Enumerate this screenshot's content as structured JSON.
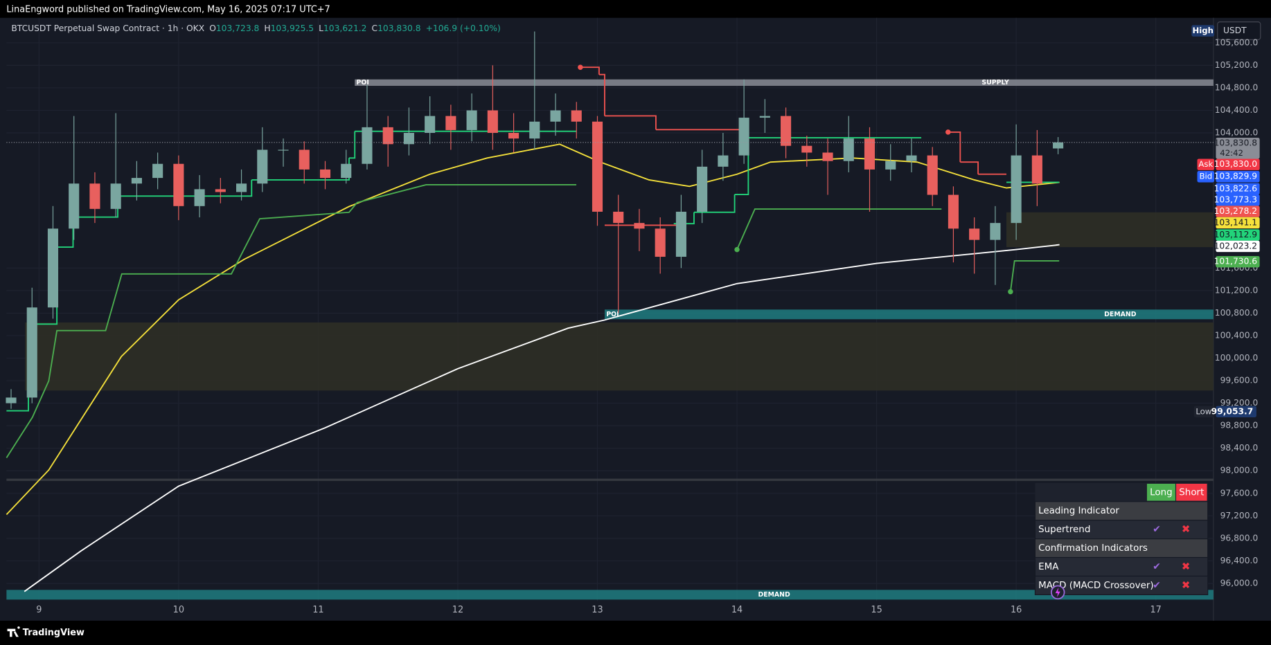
{
  "header": {
    "publisher": "LinaEngword published on TradingView.com, May 16, 2025 07:17 UTC+7"
  },
  "legend": {
    "symbol": "BTCUSDT Perpetual Swap Contract · 1h · OKX",
    "o_label": "O",
    "open": "103,723.8",
    "h_label": "H",
    "high": "103,925.5",
    "l_label": "L",
    "low": "103,621.2",
    "c_label": "C",
    "close": "103,830.8",
    "change": "+106.9 (+0.10%)"
  },
  "chart_data": {
    "type": "candlestick",
    "up_color": "#7aa6a0",
    "down_color": "#e8605e",
    "x": [
      8.8,
      8.95,
      9.1,
      9.25,
      9.4,
      9.55,
      9.7,
      9.85,
      10.0,
      10.15,
      10.3,
      10.45,
      10.6,
      10.75,
      10.9,
      11.05,
      11.2,
      11.35,
      11.5,
      11.65,
      11.8,
      11.95,
      12.1,
      12.25,
      12.4,
      12.55,
      12.7,
      12.85,
      13.0,
      13.15,
      13.3,
      13.45,
      13.6,
      13.75,
      13.9,
      14.05,
      14.2,
      14.35,
      14.5,
      14.65,
      14.8,
      14.95,
      15.1,
      15.25,
      15.4,
      15.55,
      15.7,
      15.85,
      16.0,
      16.15,
      16.3
    ],
    "open": [
      99200,
      99300,
      100900,
      102300,
      103100,
      102650,
      103100,
      103200,
      103450,
      102700,
      103000,
      102950,
      103100,
      103700,
      103700,
      103350,
      103200,
      103450,
      104100,
      103800,
      104000,
      104300,
      104050,
      104400,
      104000,
      103900,
      104200,
      104400,
      104200,
      102600,
      102400,
      102300,
      101800,
      102600,
      103400,
      103600,
      104270,
      104300,
      103770,
      103650,
      103500,
      103900,
      103350,
      103500,
      103600,
      102900,
      102300,
      102100,
      102400,
      103600,
      103723.8
    ],
    "high": [
      99450,
      101250,
      102700,
      104300,
      103300,
      104350,
      103500,
      103650,
      103600,
      103250,
      103200,
      103350,
      104100,
      103900,
      103850,
      103500,
      103700,
      104850,
      104300,
      104450,
      104650,
      104500,
      104700,
      105200,
      104350,
      105800,
      104700,
      104550,
      104300,
      102900,
      102650,
      102500,
      102900,
      103700,
      104000,
      104950,
      104600,
      104450,
      103950,
      103900,
      104300,
      104100,
      103800,
      103900,
      103750,
      103050,
      102500,
      102700,
      104150,
      104050,
      103925.5
    ],
    "low": [
      99100,
      99200,
      100700,
      102100,
      102400,
      102500,
      102800,
      103000,
      102450,
      102500,
      102750,
      102800,
      102950,
      103400,
      103100,
      103000,
      103100,
      103350,
      103400,
      103600,
      103800,
      103700,
      103850,
      103700,
      103650,
      103700,
      103950,
      103900,
      102350,
      100800,
      101900,
      101500,
      101600,
      102400,
      103150,
      103450,
      104000,
      103550,
      103400,
      102900,
      103300,
      102600,
      103150,
      103300,
      102700,
      101700,
      101500,
      101300,
      102100,
      102700,
      103621.2
    ],
    "close": [
      99300,
      100900,
      102300,
      103100,
      102650,
      103100,
      103200,
      103450,
      102700,
      103000,
      102950,
      103100,
      103700,
      103700,
      103350,
      103200,
      103450,
      104100,
      103800,
      104000,
      104300,
      104050,
      104400,
      104000,
      103900,
      104200,
      104400,
      104200,
      102600,
      102400,
      102300,
      101800,
      102600,
      103400,
      103600,
      104270,
      104300,
      103770,
      103650,
      103500,
      103900,
      103350,
      103500,
      103600,
      102900,
      102300,
      102100,
      102400,
      103600,
      103100,
      103830.8
    ],
    "xlim": [
      8.767,
      17.413
    ],
    "xticks": [
      9,
      10,
      11,
      12,
      13,
      14,
      15,
      16,
      17
    ],
    "ylim": [
      95683,
      106072
    ],
    "yticks": [
      {
        "value": 105600,
        "label": "105,600.0"
      },
      {
        "value": 105200,
        "label": "105,200.0"
      },
      {
        "value": 104800,
        "label": "104,800.0"
      },
      {
        "value": 104400,
        "label": "104,400.0"
      },
      {
        "value": 104000,
        "label": "104,000.0"
      },
      {
        "value": 101600,
        "label": "101,600.0"
      },
      {
        "value": 101200,
        "label": "101,200.0"
      },
      {
        "value": 100800,
        "label": "100,800.0"
      },
      {
        "value": 100400,
        "label": "100,400.0"
      },
      {
        "value": 100000,
        "label": "100,000.0"
      },
      {
        "value": 99600,
        "label": "99,600.0"
      },
      {
        "value": 99200,
        "label": "99,200.0"
      },
      {
        "value": 98800,
        "label": "98,800.0"
      },
      {
        "value": 98400,
        "label": "98,400.0"
      },
      {
        "value": 98000,
        "label": "98,000.0"
      },
      {
        "value": 97600,
        "label": "97,600.0"
      },
      {
        "value": 97200,
        "label": "97,200.0"
      },
      {
        "value": 96800,
        "label": "96,800.0"
      },
      {
        "value": 96400,
        "label": "96,400.0"
      },
      {
        "value": 96000,
        "label": "96,000.0"
      }
    ],
    "grid": true,
    "last_price": 103830.8,
    "zones": [
      {
        "x_start": 11.262,
        "top": 104950,
        "bottom": 104835,
        "color": "#8a8d96",
        "poi": "POI",
        "name": "SUPPLY"
      },
      {
        "x_start": 13.052,
        "top": 100863,
        "bottom": 100691,
        "color": "#1f7d80",
        "poi": "POI",
        "name": "DEMAND"
      },
      {
        "x_start": 8.767,
        "top": 95885,
        "bottom": 95712,
        "color": "#1f7d80",
        "name": "DEMAND"
      },
      {
        "x_start": 8.9,
        "top": 100633,
        "bottom": 99424,
        "color": "#2e2f26"
      },
      {
        "x_start": 15.93,
        "top": 102590,
        "bottom": 101971,
        "color": "#2e2f26"
      },
      {
        "x_start": 8.767,
        "top": 97860,
        "bottom": 97820,
        "color": "#3a3d44"
      }
    ],
    "lines": [
      {
        "color": "#ffffff",
        "style": "line",
        "x": [
          8.895,
          9.3,
          10.0,
          11.05,
          12.0,
          12.79,
          13.05,
          14.0,
          15.0,
          16.0,
          16.31
        ],
        "values": [
          95856,
          96575,
          97727,
          98763,
          99813,
          100532,
          100676,
          101324,
          101683,
          101928,
          102014
        ]
      },
      {
        "color": "#f5e13b",
        "style": "line",
        "x": [
          8.767,
          9.07,
          9.59,
          10.0,
          10.47,
          11.22,
          11.8,
          12.21,
          12.73,
          13.02,
          13.37,
          13.66,
          14.0,
          14.24,
          14.83,
          15.29,
          15.7,
          15.93,
          16.31
        ],
        "values": [
          97223,
          98014,
          100029,
          101036,
          101755,
          102691,
          103266,
          103554,
          103799,
          103482,
          103165,
          103050,
          103266,
          103482,
          103554,
          103482,
          103165,
          103022,
          103122
        ]
      },
      {
        "color": "#4caf50",
        "style": "line",
        "x": [
          8.767,
          8.953,
          9.07,
          9.128,
          9.477,
          9.593,
          10.378,
          10.581,
          11.221,
          11.279,
          11.773,
          12.849,
          null,
          14.0,
          14.128,
          15.465,
          null,
          15.959,
          15.988,
          16.308
        ],
        "values": [
          98230,
          98950,
          99597,
          100489,
          100489,
          101496,
          101496,
          102475,
          102590,
          102763,
          103079,
          103079,
          null,
          101928,
          102647,
          102647,
          null,
          101180,
          101727,
          101727
        ]
      },
      {
        "color": "#22d47a",
        "style": "step",
        "x": [
          8.767,
          8.924,
          9.128,
          9.244,
          9.564,
          10.523,
          11.221,
          11.262,
          12.849,
          null,
          13.547,
          13.692,
          13.983,
          14.081,
          15.32,
          null,
          15.93,
          16.308
        ],
        "values": [
          99065,
          100604,
          101971,
          102504,
          102878,
          103165,
          103554,
          104029,
          104029,
          null,
          102388,
          102590,
          102906,
          103914,
          103914,
          null,
          103122,
          103122
        ]
      },
      {
        "color": "#f05350",
        "style": "step",
        "x": [
          12.878,
          13.012,
          13.052,
          13.419,
          14.041,
          null,
          13.052,
          13.634,
          null,
          15.512,
          15.599,
          15.727,
          15.93
        ],
        "values": [
          105165,
          105036,
          104302,
          104058,
          104058,
          null,
          102360,
          102360,
          null,
          104014,
          103482,
          103266,
          103266
        ]
      }
    ],
    "markers": [
      {
        "x": 12.878,
        "value": 105165,
        "color": "#f05350"
      },
      {
        "x": 15.512,
        "value": 104014,
        "color": "#f05350"
      },
      {
        "x": 14.0,
        "value": 101928,
        "color": "#4caf50"
      },
      {
        "x": 15.959,
        "value": 101180,
        "color": "#4caf50"
      }
    ]
  },
  "high_label": "High",
  "currency": "USDT",
  "low_label": "Low",
  "low_value": "99,053.7",
  "price_badges": [
    {
      "text": "103,830.8",
      "sub": "42:42",
      "bg": "#8a8d96",
      "fg": "#1a1d26"
    },
    {
      "tag": "Ask",
      "text": "103,830.0",
      "bg": "#f23645",
      "fg": "#ffffff"
    },
    {
      "tag": "Bid",
      "text": "103,829.9",
      "bg": "#2962ff",
      "fg": "#ffffff"
    },
    {
      "text": "103,822.6",
      "bg": "#2962ff",
      "fg": "#ffffff"
    },
    {
      "text": "103,773.3",
      "bg": "#2962ff",
      "fg": "#ffffff"
    },
    {
      "text": "103,278.2",
      "bg": "#f05350",
      "fg": "#ffffff"
    },
    {
      "text": "103,141.1",
      "bg": "#f5e13b",
      "fg": "#131722"
    },
    {
      "text": "103,112.9",
      "bg": "#22d47a",
      "fg": "#131722"
    },
    {
      "text": "102,023.2",
      "bg": "#ffffff",
      "fg": "#131722"
    },
    {
      "text": "101,730.6",
      "bg": "#4caf50",
      "fg": "#ffffff"
    }
  ],
  "table": {
    "long": "Long",
    "short": "Short",
    "rows": [
      {
        "name": "Leading Indicator",
        "section": true
      },
      {
        "name": "Supertrend",
        "long": "✔",
        "short": "✖"
      },
      {
        "name": "Confirmation Indicators",
        "section": true
      },
      {
        "name": "EMA",
        "long": "✔",
        "short": "✖"
      },
      {
        "name": "MACD (MACD Crossover)",
        "long": "✔",
        "short": "✖"
      }
    ]
  },
  "footer": "TradingView"
}
